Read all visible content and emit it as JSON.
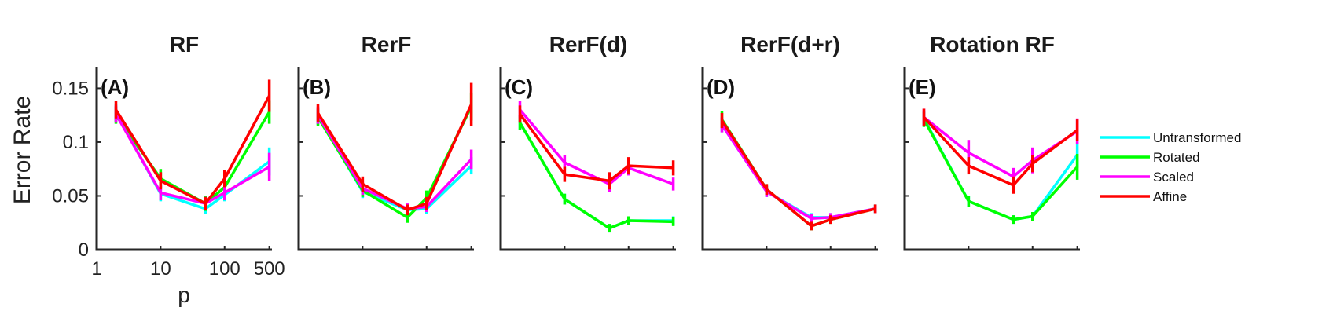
{
  "figure": {
    "ylabel": "Error Rate",
    "xlabel": "p"
  },
  "chart_data": [
    {
      "type": "line",
      "title": "RF",
      "panel_label": "(A)",
      "x": [
        2,
        10,
        50,
        100,
        500
      ],
      "xscale": "log",
      "xlim": [
        1,
        550
      ],
      "xticks": [
        "1",
        "10",
        "100",
        "500"
      ],
      "xtick_values": [
        1,
        10,
        100,
        500
      ],
      "ylim": [
        0,
        0.17
      ],
      "yticks": [
        "0",
        "0.05",
        "0.1",
        "0.15"
      ],
      "ytick_values": [
        0,
        0.05,
        0.1,
        0.15
      ],
      "series": [
        {
          "name": "Untransformed",
          "values": [
            0.127,
            0.052,
            0.038,
            0.051,
            0.082
          ],
          "err": [
            0.008,
            0.007,
            0.005,
            0.006,
            0.013
          ]
        },
        {
          "name": "Rotated",
          "values": [
            0.125,
            0.066,
            0.043,
            0.058,
            0.128
          ],
          "err": [
            0.008,
            0.009,
            0.007,
            0.008,
            0.011
          ]
        },
        {
          "name": "Scaled",
          "values": [
            0.126,
            0.053,
            0.043,
            0.053,
            0.077
          ],
          "err": [
            0.008,
            0.007,
            0.006,
            0.007,
            0.013
          ]
        },
        {
          "name": "Affine",
          "values": [
            0.13,
            0.064,
            0.043,
            0.066,
            0.143
          ],
          "err": [
            0.008,
            0.008,
            0.006,
            0.008,
            0.015
          ]
        }
      ]
    },
    {
      "type": "line",
      "title": "RerF",
      "panel_label": "(B)",
      "x": [
        2,
        10,
        50,
        100,
        500
      ],
      "xscale": "log",
      "xlim": [
        1,
        550
      ],
      "ylim": [
        0,
        0.17
      ],
      "series": [
        {
          "name": "Untransformed",
          "values": [
            0.124,
            0.054,
            0.037,
            0.038,
            0.078
          ],
          "err": [
            0.008,
            0.006,
            0.005,
            0.005,
            0.008
          ]
        },
        {
          "name": "Rotated",
          "values": [
            0.123,
            0.055,
            0.03,
            0.048,
            0.133
          ],
          "err": [
            0.008,
            0.006,
            0.005,
            0.007,
            0.013
          ]
        },
        {
          "name": "Scaled",
          "values": [
            0.125,
            0.057,
            0.038,
            0.04,
            0.084
          ],
          "err": [
            0.008,
            0.006,
            0.005,
            0.005,
            0.009
          ]
        },
        {
          "name": "Affine",
          "values": [
            0.127,
            0.061,
            0.037,
            0.043,
            0.135
          ],
          "err": [
            0.008,
            0.007,
            0.005,
            0.006,
            0.02
          ]
        }
      ]
    },
    {
      "type": "line",
      "title": "RerF(d)",
      "panel_label": "(C)",
      "x": [
        2,
        10,
        50,
        100,
        500
      ],
      "xscale": "log",
      "xlim": [
        1,
        550
      ],
      "ylim": [
        0,
        0.17
      ],
      "series": [
        {
          "name": "Untransformed",
          "values": [
            0.118,
            0.047,
            0.02,
            0.027,
            0.027
          ],
          "err": [
            0.007,
            0.005,
            0.004,
            0.004,
            0.004
          ]
        },
        {
          "name": "Rotated",
          "values": [
            0.118,
            0.047,
            0.02,
            0.027,
            0.026
          ],
          "err": [
            0.007,
            0.005,
            0.004,
            0.004,
            0.004
          ]
        },
        {
          "name": "Scaled",
          "values": [
            0.13,
            0.081,
            0.061,
            0.076,
            0.061
          ],
          "err": [
            0.008,
            0.007,
            0.007,
            0.007,
            0.006
          ]
        },
        {
          "name": "Affine",
          "values": [
            0.126,
            0.07,
            0.064,
            0.078,
            0.076
          ],
          "err": [
            0.008,
            0.007,
            0.008,
            0.008,
            0.007
          ]
        }
      ]
    },
    {
      "type": "line",
      "title": "RerF(d+r)",
      "panel_label": "(D)",
      "x": [
        2,
        10,
        50,
        100,
        500
      ],
      "xscale": "log",
      "xlim": [
        1,
        550
      ],
      "ylim": [
        0,
        0.17
      ],
      "series": [
        {
          "name": "Untransformed",
          "values": [
            0.116,
            0.054,
            0.03,
            0.03,
            0.038
          ],
          "err": [
            0.007,
            0.005,
            0.004,
            0.004,
            0.004
          ]
        },
        {
          "name": "Rotated",
          "values": [
            0.121,
            0.056,
            0.022,
            0.028,
            0.038
          ],
          "err": [
            0.008,
            0.005,
            0.004,
            0.004,
            0.004
          ]
        },
        {
          "name": "Scaled",
          "values": [
            0.116,
            0.054,
            0.029,
            0.03,
            0.038
          ],
          "err": [
            0.007,
            0.005,
            0.004,
            0.004,
            0.004
          ]
        },
        {
          "name": "Affine",
          "values": [
            0.12,
            0.056,
            0.022,
            0.028,
            0.038
          ],
          "err": [
            0.007,
            0.005,
            0.004,
            0.004,
            0.004
          ]
        }
      ]
    },
    {
      "type": "line",
      "title": "Rotation RF",
      "panel_label": "(E)",
      "x": [
        2,
        10,
        50,
        100,
        500
      ],
      "xscale": "log",
      "xlim": [
        1,
        550
      ],
      "ylim": [
        0,
        0.17
      ],
      "series": [
        {
          "name": "Untransformed",
          "values": [
            0.122,
            0.045,
            0.028,
            0.031,
            0.088
          ],
          "err": [
            0.007,
            0.005,
            0.004,
            0.004,
            0.012
          ]
        },
        {
          "name": "Rotated",
          "values": [
            0.121,
            0.045,
            0.028,
            0.031,
            0.077
          ],
          "err": [
            0.007,
            0.005,
            0.004,
            0.004,
            0.012
          ]
        },
        {
          "name": "Scaled",
          "values": [
            0.123,
            0.09,
            0.068,
            0.083,
            0.11
          ],
          "err": [
            0.008,
            0.012,
            0.008,
            0.012,
            0.012
          ]
        },
        {
          "name": "Affine",
          "values": [
            0.123,
            0.078,
            0.06,
            0.08,
            0.111
          ],
          "err": [
            0.008,
            0.008,
            0.008,
            0.008,
            0.01
          ]
        }
      ]
    }
  ],
  "legend": {
    "placement": "right",
    "entries": [
      {
        "label": "Untransformed",
        "color": "#00ffff"
      },
      {
        "label": "Rotated",
        "color": "#00ff00"
      },
      {
        "label": "Scaled",
        "color": "#ff00ff"
      },
      {
        "label": "Affine",
        "color": "#ff0000"
      }
    ]
  }
}
